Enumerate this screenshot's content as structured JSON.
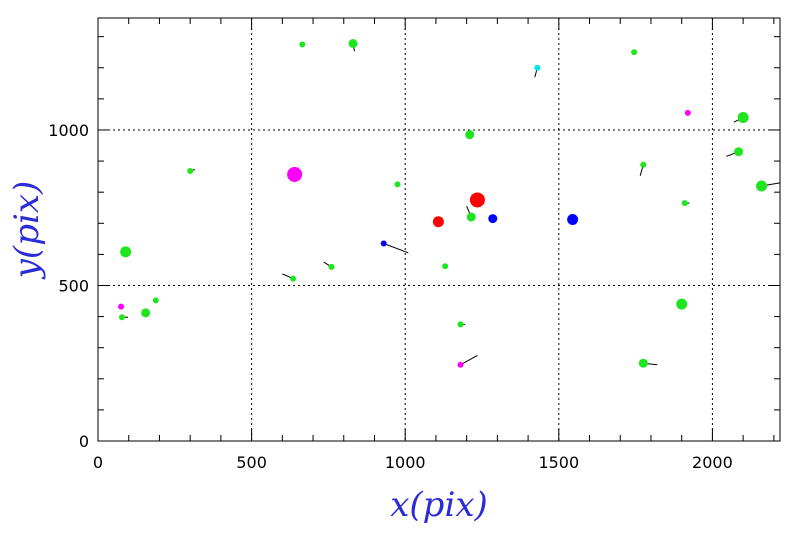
{
  "chart_data": {
    "type": "scatter",
    "xlabel": "x(pix)",
    "ylabel": "y(pix)",
    "xlim": [
      0,
      2220
    ],
    "ylim": [
      0,
      1360
    ],
    "grid": true,
    "x_ticks": [
      0,
      500,
      1000,
      1500,
      2000
    ],
    "y_ticks": [
      0,
      500,
      1000
    ],
    "x_tick_labels": [
      "0",
      "500",
      "1000",
      "1500",
      "2000"
    ],
    "y_tick_labels": [
      "0",
      "500",
      "1000"
    ],
    "colors": {
      "green": "#1ee61e",
      "red": "#ff0000",
      "blue": "#0000ff",
      "magenta": "#ff00ff",
      "cyan": "#00e5e5",
      "vector": "#000000",
      "grid": "#000000",
      "axis_label": "#2b2bd8"
    },
    "points": [
      {
        "x": 665,
        "y": 1275,
        "color": "green",
        "size": "small",
        "dx": -2,
        "dy": 0
      },
      {
        "x": 830,
        "y": 1278,
        "color": "green",
        "size": "medium",
        "dx": 5,
        "dy": -25
      },
      {
        "x": 1430,
        "y": 1200,
        "color": "cyan",
        "size": "small",
        "dx": -8,
        "dy": -30
      },
      {
        "x": 1745,
        "y": 1250,
        "color": "green",
        "size": "small",
        "dx": 8,
        "dy": 0
      },
      {
        "x": 1920,
        "y": 1055,
        "color": "magenta",
        "size": "small",
        "dx": 5,
        "dy": 0
      },
      {
        "x": 2100,
        "y": 1040,
        "color": "green",
        "size": "large",
        "dx": -30,
        "dy": -15
      },
      {
        "x": 2085,
        "y": 930,
        "color": "green",
        "size": "medium",
        "dx": -40,
        "dy": -15
      },
      {
        "x": 2160,
        "y": 820,
        "color": "green",
        "size": "large",
        "dx": 60,
        "dy": 10
      },
      {
        "x": 300,
        "y": 868,
        "color": "green",
        "size": "small",
        "dx": 15,
        "dy": 5
      },
      {
        "x": 640,
        "y": 857,
        "color": "magenta",
        "size": "xlarge",
        "dx": 0,
        "dy": 0
      },
      {
        "x": 975,
        "y": 825,
        "color": "green",
        "size": "small",
        "dx": -5,
        "dy": 0
      },
      {
        "x": 1210,
        "y": 985,
        "color": "green",
        "size": "medium",
        "dx": 0,
        "dy": 0
      },
      {
        "x": 1775,
        "y": 888,
        "color": "green",
        "size": "small",
        "dx": -10,
        "dy": -35
      },
      {
        "x": 1910,
        "y": 765,
        "color": "green",
        "size": "small",
        "dx": 15,
        "dy": 0
      },
      {
        "x": 1235,
        "y": 775,
        "color": "red",
        "size": "xlarge",
        "dx": 0,
        "dy": 0
      },
      {
        "x": 1108,
        "y": 705,
        "color": "red",
        "size": "large",
        "dx": 0,
        "dy": 0
      },
      {
        "x": 1215,
        "y": 720,
        "color": "green",
        "size": "medium",
        "dx": -15,
        "dy": 35
      },
      {
        "x": 1285,
        "y": 715,
        "color": "blue",
        "size": "medium",
        "dx": 0,
        "dy": 0
      },
      {
        "x": 1545,
        "y": 712,
        "color": "blue",
        "size": "large",
        "dx": 0,
        "dy": 0
      },
      {
        "x": 90,
        "y": 608,
        "color": "green",
        "size": "large",
        "dx": 0,
        "dy": 0
      },
      {
        "x": 930,
        "y": 635,
        "color": "blue",
        "size": "small",
        "dx": 80,
        "dy": -30
      },
      {
        "x": 760,
        "y": 560,
        "color": "green",
        "size": "small",
        "dx": -25,
        "dy": 15
      },
      {
        "x": 1130,
        "y": 562,
        "color": "green",
        "size": "small",
        "dx": 0,
        "dy": 0
      },
      {
        "x": 635,
        "y": 522,
        "color": "green",
        "size": "small",
        "dx": -35,
        "dy": 15
      },
      {
        "x": 188,
        "y": 452,
        "color": "green",
        "size": "small",
        "dx": 0,
        "dy": 0
      },
      {
        "x": 75,
        "y": 432,
        "color": "magenta",
        "size": "small",
        "dx": 0,
        "dy": 0
      },
      {
        "x": 155,
        "y": 412,
        "color": "green",
        "size": "medium",
        "dx": 0,
        "dy": 0
      },
      {
        "x": 78,
        "y": 398,
        "color": "green",
        "size": "small",
        "dx": 20,
        "dy": 0
      },
      {
        "x": 1900,
        "y": 440,
        "color": "green",
        "size": "large",
        "dx": 0,
        "dy": 0
      },
      {
        "x": 1180,
        "y": 375,
        "color": "green",
        "size": "small",
        "dx": 15,
        "dy": 0
      },
      {
        "x": 1180,
        "y": 245,
        "color": "magenta",
        "size": "small",
        "dx": 55,
        "dy": 30
      },
      {
        "x": 1775,
        "y": 250,
        "color": "green",
        "size": "medium",
        "dx": 45,
        "dy": -5
      }
    ]
  }
}
